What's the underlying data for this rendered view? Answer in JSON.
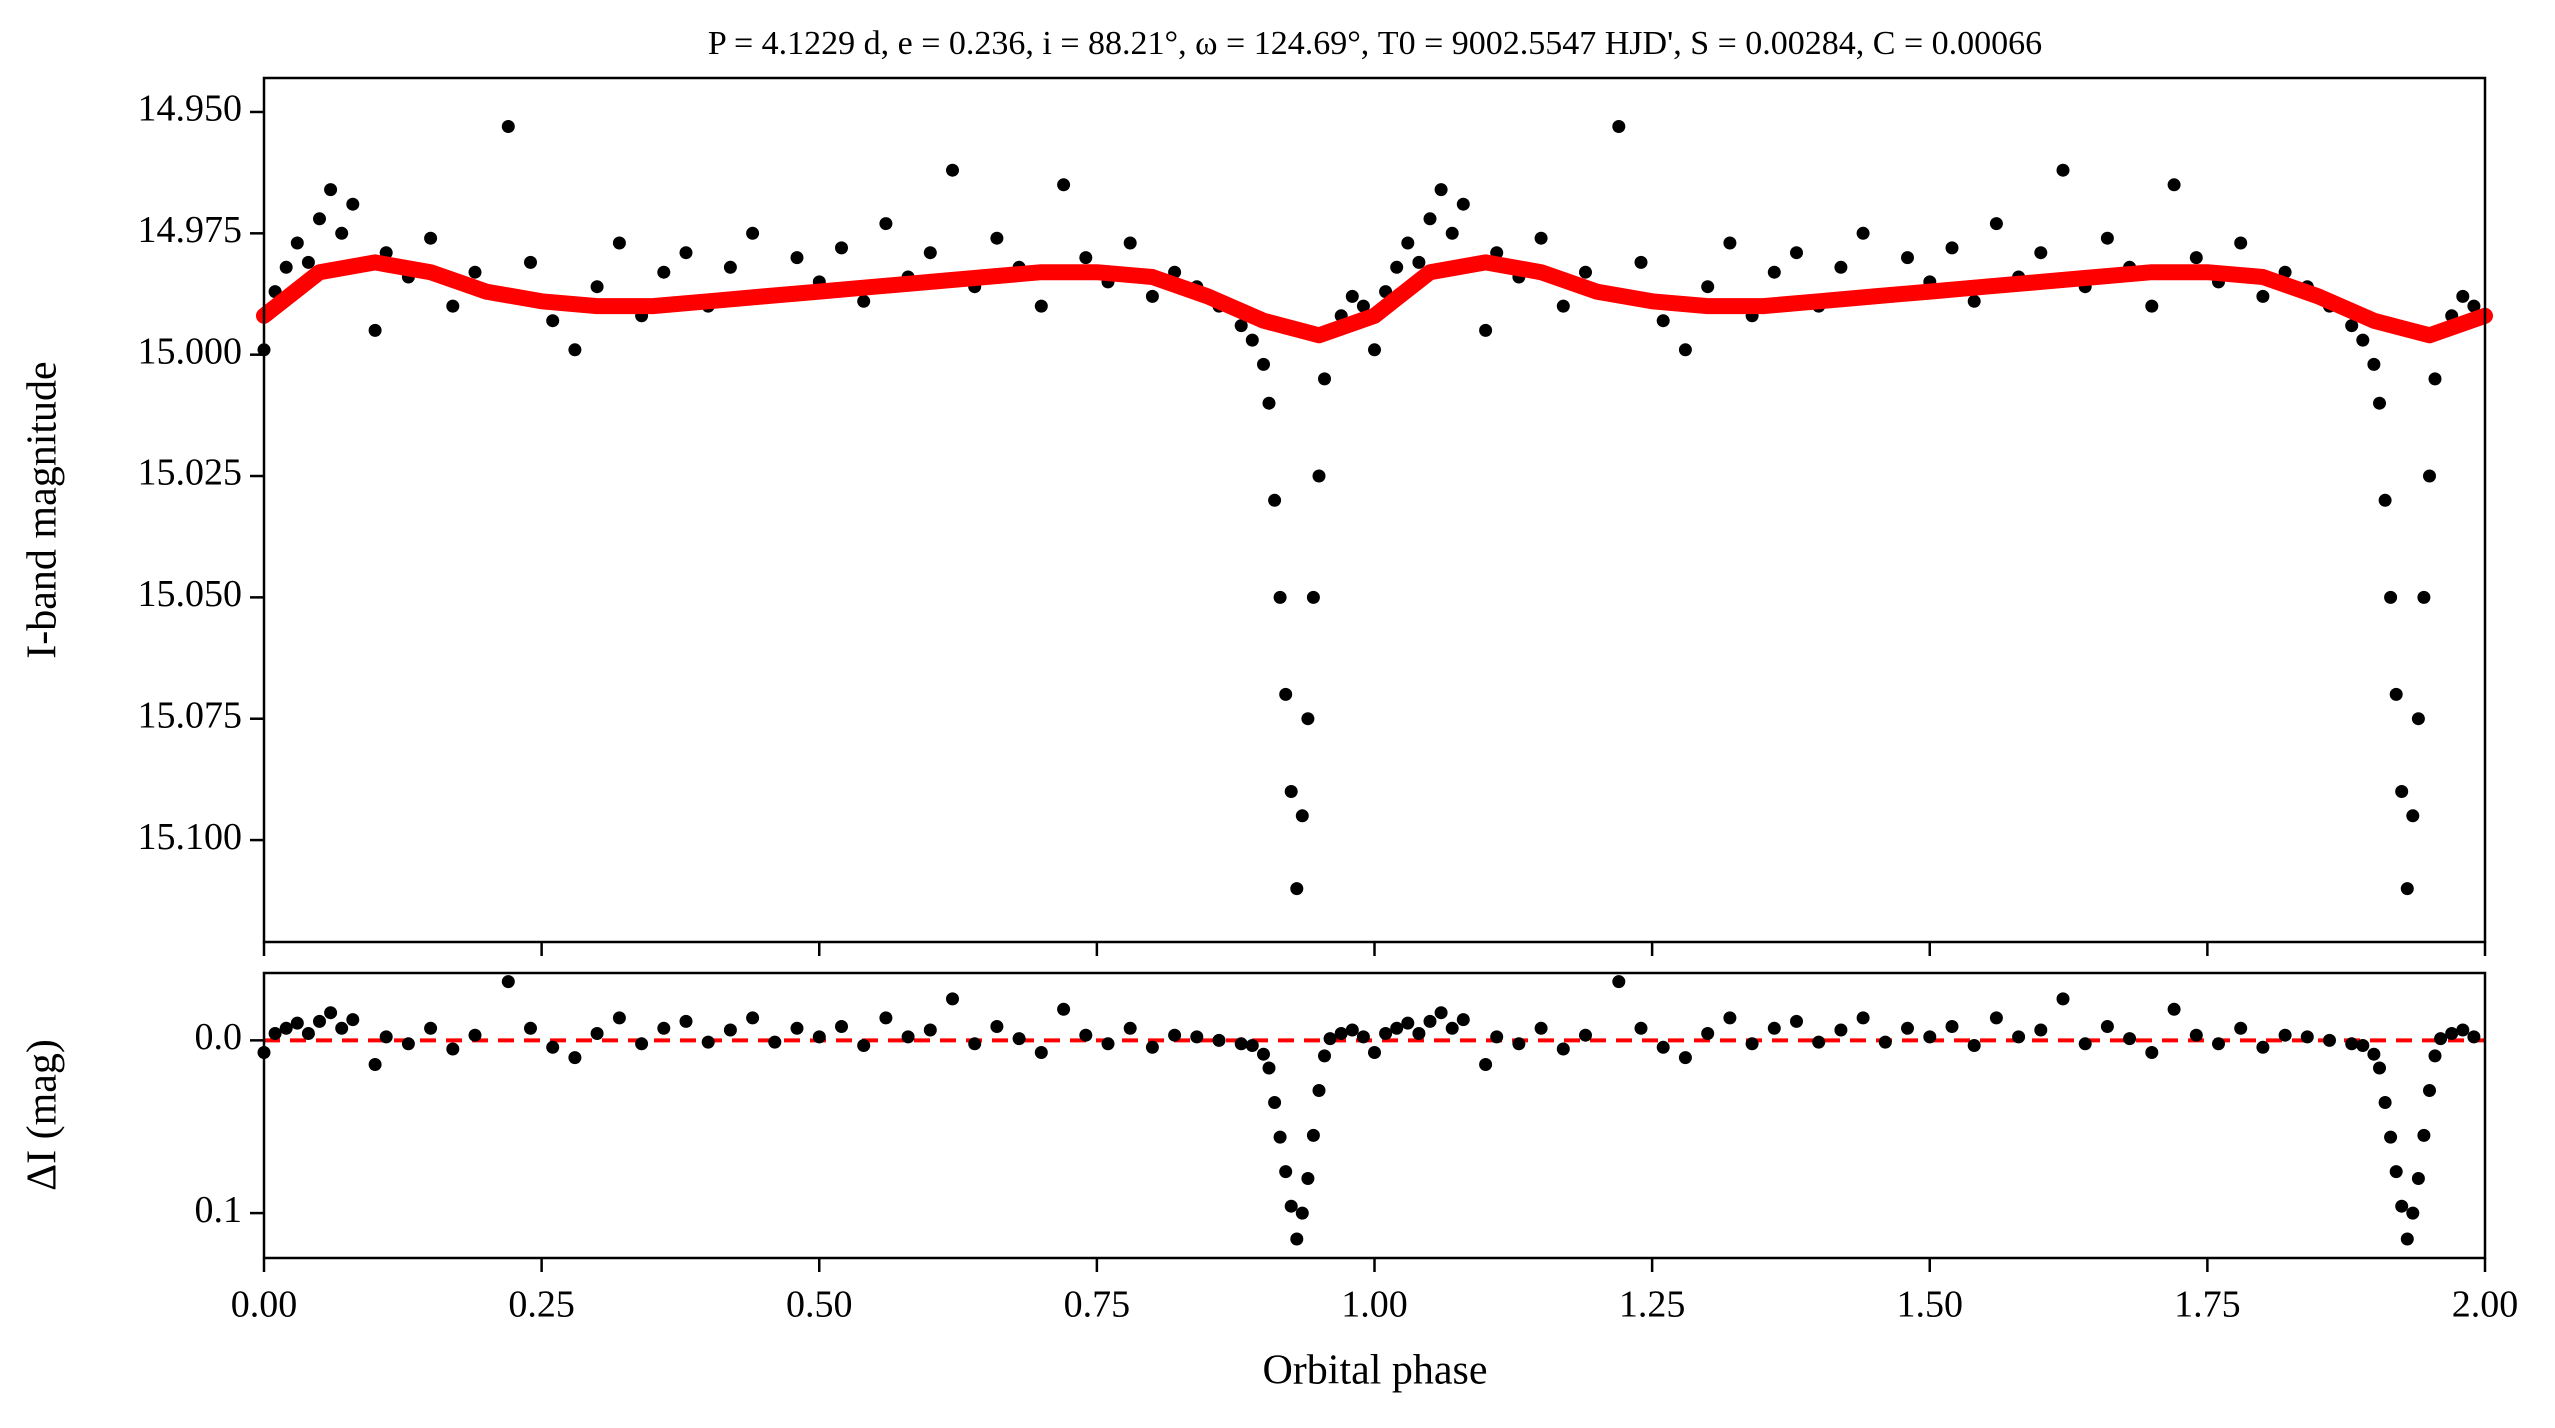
{
  "chart_data": [
    {
      "type": "scatter",
      "title": "P = 4.1229 d, e = 0.236, i = 88.21°, ω = 124.69°, T0 = 9002.5547 HJD', S = 0.00284, C = 0.00066",
      "ylabel": "I-band magnitude",
      "xlim": [
        0,
        2
      ],
      "xticks": [
        0,
        0.25,
        0.5,
        0.75,
        1,
        1.25,
        1.5,
        1.75,
        2
      ],
      "ylim": [
        15.121,
        14.943
      ],
      "yticks": [
        {
          "value": 14.95,
          "label": "14.950"
        },
        {
          "value": 14.975,
          "label": "14.975"
        },
        {
          "value": 15,
          "label": "15.000"
        },
        {
          "value": 15.025,
          "label": "15.025"
        },
        {
          "value": 15.05,
          "label": "15.050"
        },
        {
          "value": 15.075,
          "label": "15.075"
        },
        {
          "value": 15.1,
          "label": "15.100"
        }
      ],
      "series": [
        {
          "color": "#000000",
          "style": "points",
          "x": [
            0,
            0.01,
            0.02,
            0.03,
            0.04,
            0.05,
            0.06,
            0.07,
            0.08,
            0.1,
            0.11,
            0.13,
            0.15,
            0.17,
            0.19,
            0.22,
            0.24,
            0.26,
            0.28,
            0.3,
            0.32,
            0.34,
            0.36,
            0.38,
            0.4,
            0.42,
            0.44,
            0.46,
            0.48,
            0.5,
            0.52,
            0.54,
            0.56,
            0.58,
            0.6,
            0.62,
            0.64,
            0.66,
            0.68,
            0.7,
            0.72,
            0.74,
            0.76,
            0.78,
            0.8,
            0.82,
            0.84,
            0.86,
            0.88,
            0.89,
            0.9,
            0.905,
            0.91,
            0.915,
            0.92,
            0.925,
            0.93,
            0.935,
            0.94,
            0.945,
            0.95,
            0.955,
            0.96,
            0.97,
            0.98,
            0.99,
            1,
            1.01,
            1.02,
            1.03,
            1.04,
            1.05,
            1.06,
            1.07,
            1.08,
            1.1,
            1.11,
            1.13,
            1.15,
            1.17,
            1.19,
            1.22,
            1.24,
            1.26,
            1.28,
            1.3,
            1.32,
            1.34,
            1.36,
            1.38,
            1.4,
            1.42,
            1.44,
            1.46,
            1.48,
            1.5,
            1.52,
            1.54,
            1.56,
            1.58,
            1.6,
            1.62,
            1.64,
            1.66,
            1.68,
            1.7,
            1.72,
            1.74,
            1.76,
            1.78,
            1.8,
            1.82,
            1.84,
            1.86,
            1.88,
            1.89,
            1.9,
            1.905,
            1.91,
            1.915,
            1.92,
            1.925,
            1.93,
            1.935,
            1.94,
            1.945,
            1.95,
            1.955,
            1.96,
            1.97,
            1.98,
            1.99
          ],
          "values": [
            14.999,
            14.987,
            14.982,
            14.977,
            14.981,
            14.972,
            14.966,
            14.975,
            14.969,
            14.995,
            14.979,
            14.984,
            14.976,
            14.99,
            14.983,
            14.953,
            14.981,
            14.993,
            14.999,
            14.986,
            14.977,
            14.992,
            14.983,
            14.979,
            14.99,
            14.982,
            14.975,
            14.988,
            14.98,
            14.985,
            14.978,
            14.989,
            14.973,
            14.984,
            14.979,
            14.962,
            14.986,
            14.976,
            14.982,
            14.99,
            14.965,
            14.98,
            14.985,
            14.977,
            14.988,
            14.983,
            14.986,
            14.99,
            14.994,
            14.997,
            15.002,
            15.01,
            15.03,
            15.05,
            15.07,
            15.09,
            15.11,
            15.095,
            15.075,
            15.05,
            15.025,
            15.005,
            14.995,
            14.992,
            14.988,
            14.99,
            14.999,
            14.987,
            14.982,
            14.977,
            14.981,
            14.972,
            14.966,
            14.975,
            14.969,
            14.995,
            14.979,
            14.984,
            14.976,
            14.99,
            14.983,
            14.953,
            14.981,
            14.993,
            14.999,
            14.986,
            14.977,
            14.992,
            14.983,
            14.979,
            14.99,
            14.982,
            14.975,
            14.988,
            14.98,
            14.985,
            14.978,
            14.989,
            14.973,
            14.984,
            14.979,
            14.962,
            14.986,
            14.976,
            14.982,
            14.99,
            14.965,
            14.98,
            14.985,
            14.977,
            14.988,
            14.983,
            14.986,
            14.99,
            14.994,
            14.997,
            15.002,
            15.01,
            15.03,
            15.05,
            15.07,
            15.09,
            15.11,
            15.095,
            15.075,
            15.05,
            15.025,
            15.005,
            14.995,
            14.992,
            14.988,
            14.99
          ]
        },
        {
          "color": "#ff0000",
          "style": "line",
          "x": [
            0,
            0.05,
            0.1,
            0.15,
            0.2,
            0.25,
            0.3,
            0.35,
            0.4,
            0.45,
            0.5,
            0.55,
            0.6,
            0.65,
            0.7,
            0.75,
            0.8,
            0.85,
            0.9,
            0.95,
            1,
            1.05,
            1.1,
            1.15,
            1.2,
            1.25,
            1.3,
            1.35,
            1.4,
            1.45,
            1.5,
            1.55,
            1.6,
            1.65,
            1.7,
            1.75,
            1.8,
            1.85,
            1.9,
            1.95,
            2
          ],
          "values": [
            14.992,
            14.983,
            14.981,
            14.983,
            14.987,
            14.989,
            14.99,
            14.99,
            14.989,
            14.988,
            14.987,
            14.986,
            14.985,
            14.984,
            14.983,
            14.983,
            14.984,
            14.988,
            14.993,
            14.996,
            14.992,
            14.983,
            14.981,
            14.983,
            14.987,
            14.989,
            14.99,
            14.99,
            14.989,
            14.988,
            14.987,
            14.986,
            14.985,
            14.984,
            14.983,
            14.983,
            14.984,
            14.988,
            14.993,
            14.996,
            14.992
          ]
        }
      ]
    },
    {
      "type": "scatter",
      "ylabel": "ΔI (mag)",
      "xlabel": "Orbital phase",
      "xlim": [
        0,
        2
      ],
      "xticks": [
        {
          "value": 0,
          "label": "0.00"
        },
        {
          "value": 0.25,
          "label": "0.25"
        },
        {
          "value": 0.5,
          "label": "0.50"
        },
        {
          "value": 0.75,
          "label": "0.75"
        },
        {
          "value": 1,
          "label": "1.00"
        },
        {
          "value": 1.25,
          "label": "1.25"
        },
        {
          "value": 1.5,
          "label": "1.50"
        },
        {
          "value": 1.75,
          "label": "1.75"
        },
        {
          "value": 2,
          "label": "2.00"
        }
      ],
      "ylim": [
        0.126,
        -0.039
      ],
      "yticks": [
        {
          "value": 0,
          "label": "0.0"
        },
        {
          "value": 0.1,
          "label": "0.1"
        }
      ],
      "reference_line": {
        "value": 0,
        "color": "#ff0000"
      },
      "series": [
        {
          "color": "#000000",
          "style": "points",
          "x": [
            0,
            0.01,
            0.02,
            0.03,
            0.04,
            0.05,
            0.06,
            0.07,
            0.08,
            0.1,
            0.11,
            0.13,
            0.15,
            0.17,
            0.19,
            0.22,
            0.24,
            0.26,
            0.28,
            0.3,
            0.32,
            0.34,
            0.36,
            0.38,
            0.4,
            0.42,
            0.44,
            0.46,
            0.48,
            0.5,
            0.52,
            0.54,
            0.56,
            0.58,
            0.6,
            0.62,
            0.64,
            0.66,
            0.68,
            0.7,
            0.72,
            0.74,
            0.76,
            0.78,
            0.8,
            0.82,
            0.84,
            0.86,
            0.88,
            0.89,
            0.9,
            0.905,
            0.91,
            0.915,
            0.92,
            0.925,
            0.93,
            0.935,
            0.94,
            0.945,
            0.95,
            0.955,
            0.96,
            0.97,
            0.98,
            0.99,
            1,
            1.01,
            1.02,
            1.03,
            1.04,
            1.05,
            1.06,
            1.07,
            1.08,
            1.1,
            1.11,
            1.13,
            1.15,
            1.17,
            1.19,
            1.22,
            1.24,
            1.26,
            1.28,
            1.3,
            1.32,
            1.34,
            1.36,
            1.38,
            1.4,
            1.42,
            1.44,
            1.46,
            1.48,
            1.5,
            1.52,
            1.54,
            1.56,
            1.58,
            1.6,
            1.62,
            1.64,
            1.66,
            1.68,
            1.7,
            1.72,
            1.74,
            1.76,
            1.78,
            1.8,
            1.82,
            1.84,
            1.86,
            1.88,
            1.89,
            1.9,
            1.905,
            1.91,
            1.915,
            1.92,
            1.925,
            1.93,
            1.935,
            1.94,
            1.945,
            1.95,
            1.955,
            1.96,
            1.97,
            1.98,
            1.99
          ],
          "values": [
            0.007,
            -0.004,
            -0.007,
            -0.01,
            -0.004,
            -0.011,
            -0.016,
            -0.007,
            -0.012,
            0.014,
            -0.002,
            0.002,
            -0.007,
            0.005,
            -0.003,
            -0.034,
            -0.007,
            0.004,
            0.01,
            -0.004,
            -0.013,
            0.002,
            -0.007,
            -0.011,
            0.001,
            -0.006,
            -0.013,
            0.001,
            -0.007,
            -0.002,
            -0.008,
            0.003,
            -0.013,
            -0.002,
            -0.006,
            -0.024,
            0.002,
            -0.008,
            -0.001,
            0.007,
            -0.018,
            -0.003,
            0.002,
            -0.007,
            0.004,
            -0.003,
            -0.002,
            0,
            0.002,
            0.003,
            0.008,
            0.016,
            0.036,
            0.056,
            0.076,
            0.096,
            0.115,
            0.1,
            0.08,
            0.055,
            0.029,
            0.009,
            -0.001,
            -0.004,
            -0.006,
            -0.002,
            0.007,
            -0.004,
            -0.007,
            -0.01,
            -0.004,
            -0.011,
            -0.016,
            -0.007,
            -0.012,
            0.014,
            -0.002,
            0.002,
            -0.007,
            0.005,
            -0.003,
            -0.034,
            -0.007,
            0.004,
            0.01,
            -0.004,
            -0.013,
            0.002,
            -0.007,
            -0.011,
            0.001,
            -0.006,
            -0.013,
            0.001,
            -0.007,
            -0.002,
            -0.008,
            0.003,
            -0.013,
            -0.002,
            -0.006,
            -0.024,
            0.002,
            -0.008,
            -0.001,
            0.007,
            -0.018,
            -0.003,
            0.002,
            -0.007,
            0.004,
            -0.003,
            -0.002,
            0,
            0.002,
            0.003,
            0.008,
            0.016,
            0.036,
            0.056,
            0.076,
            0.096,
            0.115,
            0.1,
            0.08,
            0.055,
            0.029,
            0.009,
            -0.001,
            -0.004,
            -0.006,
            -0.002
          ]
        }
      ]
    }
  ]
}
